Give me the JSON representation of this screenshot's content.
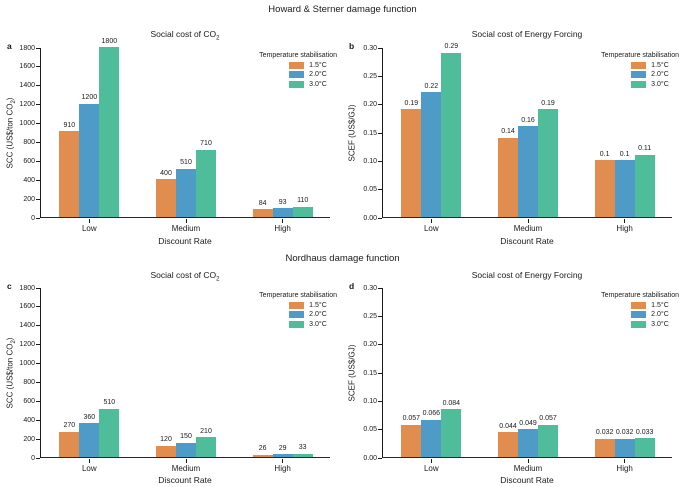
{
  "sections": [
    {
      "title": "Howard & Sterner damage function"
    },
    {
      "title": "Nordhaus damage function"
    }
  ],
  "legend": {
    "title": "Temperature stabilisation",
    "entries": [
      {
        "label": "1.5°C",
        "color": "#E08D4F"
      },
      {
        "label": "2.0°C",
        "color": "#4E9BC8"
      },
      {
        "label": "3.0°C",
        "color": "#4FBD9A"
      }
    ]
  },
  "chart_data": [
    {
      "type": "bar",
      "panel_label": "a",
      "title": {
        "pre": "Social cost of CO",
        "sub": "2",
        "post": ""
      },
      "ylabel": {
        "pre": "SCC (US$/ton CO",
        "sub": "2",
        "post": ")"
      },
      "xlabel": "Discount Rate",
      "categories": [
        "Low",
        "Medium",
        "High"
      ],
      "series": [
        {
          "name": "1.5°C",
          "values": [
            910,
            400,
            84
          ],
          "labels": [
            "910",
            "400",
            "84"
          ]
        },
        {
          "name": "2.0°C",
          "values": [
            1200,
            510,
            93
          ],
          "labels": [
            "1200",
            "510",
            "93"
          ]
        },
        {
          "name": "3.0°C",
          "values": [
            1800,
            710,
            110
          ],
          "labels": [
            "1800",
            "710",
            "110"
          ]
        }
      ],
      "ylim": [
        0,
        1800
      ],
      "yticks": [
        0,
        200,
        400,
        600,
        800,
        1000,
        1200,
        1400,
        1600,
        1800
      ],
      "ytick_labels": [
        "0",
        "200",
        "400",
        "600",
        "800",
        "1000",
        "1200",
        "1400",
        "1600",
        "1800"
      ],
      "grid": false,
      "legend_position": "upper right"
    },
    {
      "type": "bar",
      "panel_label": "b",
      "title": {
        "pre": "Social cost of Energy Forcing",
        "sub": "",
        "post": ""
      },
      "ylabel": {
        "pre": "SCEF (US$/GJ)",
        "sub": "",
        "post": ""
      },
      "xlabel": "Discount Rate",
      "categories": [
        "Low",
        "Medium",
        "High"
      ],
      "series": [
        {
          "name": "1.5°C",
          "values": [
            0.19,
            0.14,
            0.1
          ],
          "labels": [
            "0.19",
            "0.14",
            "0.1"
          ]
        },
        {
          "name": "2.0°C",
          "values": [
            0.22,
            0.16,
            0.1
          ],
          "labels": [
            "0.22",
            "0.16",
            "0.1"
          ]
        },
        {
          "name": "3.0°C",
          "values": [
            0.29,
            0.19,
            0.11
          ],
          "labels": [
            "0.29",
            "0.19",
            "0.11"
          ]
        }
      ],
      "ylim": [
        0,
        0.3
      ],
      "yticks": [
        0,
        0.05,
        0.1,
        0.15,
        0.2,
        0.25,
        0.3
      ],
      "ytick_labels": [
        "0.00",
        "0.05",
        "0.10",
        "0.15",
        "0.20",
        "0.25",
        "0.30"
      ],
      "grid": false,
      "legend_position": "upper right"
    },
    {
      "type": "bar",
      "panel_label": "c",
      "title": {
        "pre": "Social cost of CO",
        "sub": "2",
        "post": ""
      },
      "ylabel": {
        "pre": "SCC (US$/ton CO",
        "sub": "2",
        "post": ")"
      },
      "xlabel": "Discount Rate",
      "categories": [
        "Low",
        "Medium",
        "High"
      ],
      "series": [
        {
          "name": "1.5°C",
          "values": [
            270,
            120,
            26
          ],
          "labels": [
            "270",
            "120",
            "26"
          ]
        },
        {
          "name": "2.0°C",
          "values": [
            360,
            150,
            29
          ],
          "labels": [
            "360",
            "150",
            "29"
          ]
        },
        {
          "name": "3.0°C",
          "values": [
            510,
            210,
            33
          ],
          "labels": [
            "510",
            "210",
            "33"
          ]
        }
      ],
      "ylim": [
        0,
        1800
      ],
      "yticks": [
        0,
        200,
        400,
        600,
        800,
        1000,
        1200,
        1400,
        1600,
        1800
      ],
      "ytick_labels": [
        "0",
        "200",
        "400",
        "600",
        "800",
        "1000",
        "1200",
        "1400",
        "1600",
        "1800"
      ],
      "grid": false,
      "legend_position": "upper right"
    },
    {
      "type": "bar",
      "panel_label": "d",
      "title": {
        "pre": "Social cost of Energy Forcing",
        "sub": "",
        "post": ""
      },
      "ylabel": {
        "pre": "SCEF (US$/GJ)",
        "sub": "",
        "post": ""
      },
      "xlabel": "Discount Rate",
      "categories": [
        "Low",
        "Medium",
        "High"
      ],
      "series": [
        {
          "name": "1.5°C",
          "values": [
            0.057,
            0.044,
            0.032
          ],
          "labels": [
            "0.057",
            "0.044",
            "0.032"
          ]
        },
        {
          "name": "2.0°C",
          "values": [
            0.066,
            0.049,
            0.032
          ],
          "labels": [
            "0.066",
            "0.049",
            "0.032"
          ]
        },
        {
          "name": "3.0°C",
          "values": [
            0.084,
            0.057,
            0.033
          ],
          "labels": [
            "0.084",
            "0.057",
            "0.033"
          ]
        }
      ],
      "ylim": [
        0,
        0.3
      ],
      "yticks": [
        0,
        0.05,
        0.1,
        0.15,
        0.2,
        0.25,
        0.3
      ],
      "ytick_labels": [
        "0.00",
        "0.05",
        "0.10",
        "0.15",
        "0.20",
        "0.25",
        "0.30"
      ],
      "grid": false,
      "legend_position": "upper right"
    }
  ]
}
